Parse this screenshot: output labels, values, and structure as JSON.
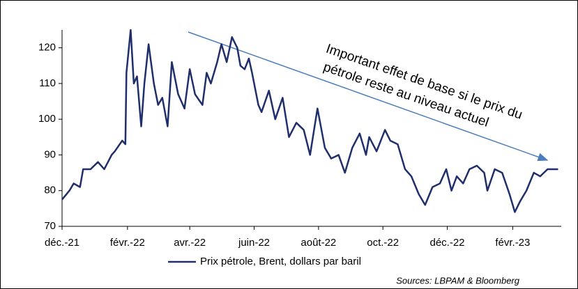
{
  "chart_data": {
    "type": "line",
    "annotation": [
      "Important effet de base si le prix du",
      "pétrole reste au niveau actuel"
    ],
    "source": "Sources: LBPAM & Bloomberg",
    "x": [
      0,
      7,
      11,
      17,
      20,
      27,
      34,
      40,
      47,
      50,
      57,
      60,
      61,
      65,
      68,
      71,
      75,
      78,
      82,
      87,
      91,
      95,
      100,
      104,
      110,
      116,
      121,
      126,
      133,
      137,
      141,
      147,
      151,
      156,
      161,
      166,
      169,
      173,
      177,
      180,
      186,
      189,
      196,
      202,
      209,
      215,
      222,
      229,
      235,
      242,
      249,
      255,
      262,
      268,
      275,
      282,
      288,
      291,
      298,
      306,
      311,
      318,
      325,
      331,
      338,
      344,
      351,
      358,
      364,
      369,
      374,
      380,
      386,
      393,
      400,
      403,
      410,
      417,
      424,
      429,
      434,
      440,
      447,
      453,
      460,
      470
    ],
    "series": [
      {
        "name": "Prix pétrole, Brent, dollars par baril",
        "color": "#1f2f6b",
        "values": [
          77.5,
          80,
          82,
          81,
          86,
          86,
          88,
          86,
          90,
          91,
          94,
          93,
          113,
          125,
          110,
          112,
          98,
          110,
          121,
          110,
          104,
          106,
          98,
          116,
          107,
          103,
          114,
          107,
          104,
          113,
          110,
          116,
          121,
          116,
          123,
          120,
          115,
          114,
          117,
          113,
          104,
          102,
          108,
          100,
          106,
          95,
          99,
          97,
          90,
          103,
          92,
          89,
          90,
          85,
          92,
          96,
          90,
          95,
          91,
          97,
          94,
          93,
          86,
          84,
          79,
          76,
          81,
          82,
          86,
          80,
          84,
          82,
          86,
          87,
          85,
          80,
          86,
          85,
          79,
          74,
          77,
          80,
          85,
          84,
          86,
          86
        ]
      }
    ],
    "xlim": [
      0,
      473
    ],
    "xticks": [
      {
        "value": 0,
        "label": "déc.-21"
      },
      {
        "value": 62,
        "label": "févr.-22"
      },
      {
        "value": 121,
        "label": "avr.-22"
      },
      {
        "value": 182,
        "label": "juin-22"
      },
      {
        "value": 243,
        "label": "août-22"
      },
      {
        "value": 304,
        "label": "oct.-22"
      },
      {
        "value": 365,
        "label": "déc.-22"
      },
      {
        "value": 427,
        "label": "févr.-23"
      }
    ],
    "ylim": [
      70,
      125
    ],
    "yticks": [
      70,
      80,
      90,
      100,
      110,
      120
    ]
  }
}
